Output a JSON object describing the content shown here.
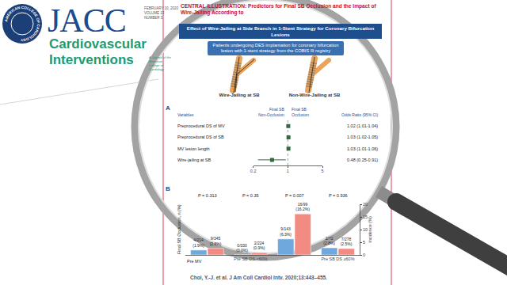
{
  "journal": {
    "seal": "AMERICAN COLLEGE OF CARDIOLOGY",
    "title": "JACC",
    "subtitle_lines": [
      "Cardiovascular",
      "Interventions"
    ],
    "tagline": "A Journal of the American College of Cardiology",
    "issue_lines": [
      "FEBRUARY 10, 2020",
      "VOLUME 13",
      "NUMBER 3"
    ]
  },
  "illustration": {
    "title": "CENTRAL ILLUSTRATION: Predictors for Final SB Occlusion and the Impact of Wire-Jailing According to",
    "header": "Effect of Wire-Jailing at Side Branch in 1-Stent Strategy for Coronary Bifurcation Lesions",
    "population": "Patients undergoing DES implantation for coronary bifurcation lesion with 1-stent strategy from the COBIS III registry",
    "citation": "Choi, Y.-J. et al. J Am Coll Cardiol Intv. 2020;13:443–455."
  },
  "chart_data": [
    {
      "type": "forest",
      "panel": "A",
      "columns": [
        "Variables",
        [
          "Final SB",
          "Non-Occlusion"
        ],
        [
          "Final SB",
          "Occlusion"
        ],
        "Odds Ratio (95% CI)"
      ],
      "categories": [
        "Preprocedural DS of MV",
        "Preprocedural DS of SB",
        "MV lesion length",
        "Wire-jailing at SB"
      ],
      "values": [
        1.02,
        1.03,
        1.03,
        0.48
      ],
      "lower": [
        1.01,
        1.02,
        1.01,
        0.25
      ],
      "upper": [
        1.04,
        1.05,
        1.06,
        0.91
      ],
      "value_labels": [
        "1.02 (1.01-1.04)",
        "1.03 (1.02-1.05)",
        "1.03 (1.01-1.06)",
        "0.48 (0.25-0.91)"
      ],
      "reference": 1,
      "log": "x",
      "xlim": [
        0.2,
        5
      ],
      "xticks": [
        0.2,
        1,
        5
      ],
      "color": "#2e6b3f",
      "marker": "square",
      "grid": false
    },
    {
      "type": "bar",
      "panel": "B",
      "side_label": "Final SB Occlusion, n (%)",
      "depth_label": "Pre MV",
      "ylabel": "Incidence (%)",
      "categories": [
        null,
        "Pre SB DS <60%",
        null,
        "Pre SB DS ≥60%"
      ],
      "p_labels": [
        "P = 0.313",
        "P = 0.35",
        "P = 0.007",
        "P = 0.936"
      ],
      "series": [
        {
          "name": "Wire-Jailing at SB",
          "color": "#6fa8dc",
          "values": [
            1.9,
            0,
            6.3,
            2.8
          ],
          "value_labels": [
            "4/214 (1.9%)",
            "0/330 (0.0%)",
            "9/143 (6.3%)",
            "2/72 (2.8%)"
          ]
        },
        {
          "name": "Non-Wire-Jailing at SB",
          "color": "#f28b82",
          "values": [
            2.6,
            0.9,
            16.2,
            2.5
          ],
          "value_labels": [
            "9/345 (2.6%)",
            "2/224 (0.9%)",
            "16/99 (16.2%)",
            "7/278 (2.5%)"
          ]
        }
      ],
      "ylim": [
        0,
        20
      ],
      "yticks": [
        0,
        5,
        10,
        15,
        20
      ],
      "data_labels": true,
      "grid": false
    }
  ]
}
